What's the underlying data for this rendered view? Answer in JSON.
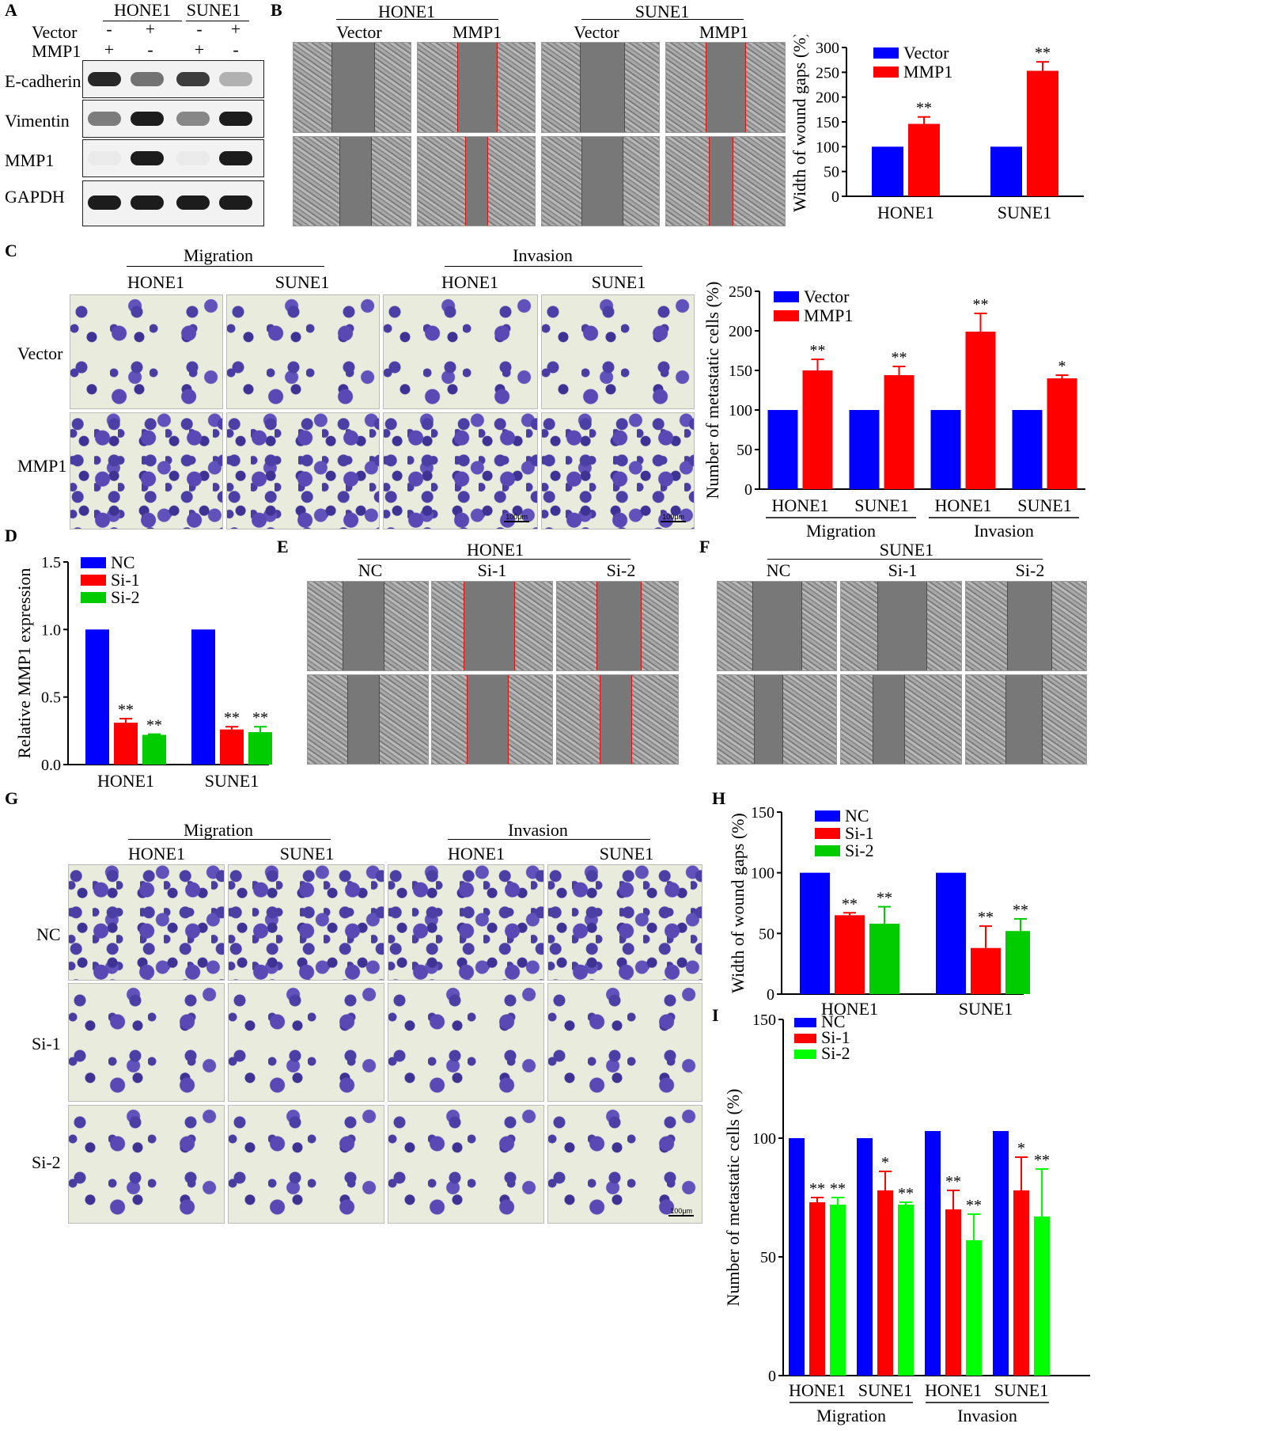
{
  "panels": {
    "A": "A",
    "B": "B",
    "C": "C",
    "D": "D",
    "E": "E",
    "F": "F",
    "G": "G",
    "H": "H",
    "I": "I"
  },
  "panel_a": {
    "groups": [
      "HONE1",
      "SUNE1"
    ],
    "row_labels": [
      "Vector",
      "MMP1"
    ],
    "vector_signs": [
      "-",
      "+",
      "-",
      "+"
    ],
    "mmp1_signs": [
      "+",
      "-",
      "+",
      "-"
    ],
    "blot_labels": [
      "E-cadherin",
      "Vimentin",
      "MMP1",
      "GAPDH"
    ],
    "band_intensity": {
      "E-cadherin": [
        0.95,
        0.6,
        0.85,
        0.3
      ],
      "Vimentin": [
        0.55,
        1.0,
        0.5,
        1.0
      ],
      "MMP1": [
        0.03,
        1.0,
        0.02,
        1.0
      ],
      "GAPDH": [
        1.0,
        1.0,
        1.0,
        1.0
      ]
    }
  },
  "panel_b": {
    "groups": [
      "HONE1",
      "SUNE1"
    ],
    "conditions": [
      "Vector",
      "MMP1",
      "Vector",
      "MMP1"
    ]
  },
  "panel_c": {
    "sections": [
      "Migration",
      "Invasion"
    ],
    "cells": [
      "HONE1",
      "SUNE1",
      "HONE1",
      "SUNE1"
    ],
    "row_labels": [
      "Vector",
      "MMP1"
    ],
    "scale_label": "100μm"
  },
  "panel_e": {
    "group": "HONE1",
    "conditions": [
      "NC",
      "Si-1",
      "Si-2"
    ]
  },
  "panel_f": {
    "group": "SUNE1",
    "conditions": [
      "NC",
      "Si-1",
      "Si-2"
    ]
  },
  "panel_g": {
    "sections": [
      "Migration",
      "Invasion"
    ],
    "cells": [
      "HONE1",
      "SUNE1",
      "HONE1",
      "SUNE1"
    ],
    "row_labels": [
      "NC",
      "Si-1",
      "Si-2"
    ],
    "scale_label": "100μm"
  },
  "chart_data": [
    {
      "id": "B",
      "type": "bar",
      "ylabel": "Width of wound gaps (%)",
      "categories": [
        "HONE1",
        "SUNE1"
      ],
      "ylim": [
        0,
        300
      ],
      "yticks": [
        0,
        50,
        100,
        150,
        200,
        250,
        300
      ],
      "series": [
        {
          "name": "Vector",
          "color": "#0000ff",
          "values": [
            100,
            100
          ],
          "errors": [
            0,
            0
          ],
          "sig": [
            "",
            ""
          ]
        },
        {
          "name": "MMP1",
          "color": "#ff0000",
          "values": [
            146,
            253
          ],
          "errors": [
            14,
            18
          ],
          "sig": [
            "**",
            "**"
          ]
        }
      ],
      "legend": "top-left"
    },
    {
      "id": "C",
      "type": "bar",
      "ylabel": "Number of metastatic cells (%)",
      "categories": [
        "HONE1",
        "SUNE1",
        "HONE1",
        "SUNE1"
      ],
      "groups": [
        "Migration",
        "Invasion"
      ],
      "ylim": [
        0,
        250
      ],
      "yticks": [
        0,
        50,
        100,
        150,
        200,
        250
      ],
      "series": [
        {
          "name": "Vector",
          "color": "#0000ff",
          "values": [
            100,
            100,
            100,
            100
          ],
          "errors": [
            0,
            0,
            0,
            0
          ],
          "sig": [
            "",
            "",
            "",
            ""
          ]
        },
        {
          "name": "MMP1",
          "color": "#ff0000",
          "values": [
            150,
            144,
            199,
            140
          ],
          "errors": [
            14,
            11,
            23,
            4
          ],
          "sig": [
            "**",
            "**",
            "**",
            "*"
          ]
        }
      ],
      "legend": "top-left"
    },
    {
      "id": "D",
      "type": "bar",
      "ylabel": "Relative MMP1 expression",
      "categories": [
        "HONE1",
        "SUNE1"
      ],
      "ylim": [
        0,
        1.5
      ],
      "yticks": [
        "0.0",
        "0.5",
        "1.0",
        "1.5"
      ],
      "series": [
        {
          "name": "NC",
          "color": "#0000ff",
          "values": [
            1.0,
            1.0
          ],
          "errors": [
            0,
            0
          ],
          "sig": [
            "",
            ""
          ]
        },
        {
          "name": "Si-1",
          "color": "#ff0000",
          "values": [
            0.31,
            0.26
          ],
          "errors": [
            0.03,
            0.02
          ],
          "sig": [
            "**",
            "**"
          ]
        },
        {
          "name": "Si-2",
          "color": "#00cc00",
          "values": [
            0.22,
            0.24
          ],
          "errors": [
            0.005,
            0.04
          ],
          "sig": [
            "**",
            "**"
          ]
        }
      ],
      "legend": "top-left"
    },
    {
      "id": "H",
      "type": "bar",
      "ylabel": "Width of wound gaps (%)",
      "categories": [
        "HONE1",
        "SUNE1"
      ],
      "ylim": [
        0,
        150
      ],
      "yticks": [
        0,
        50,
        100,
        150
      ],
      "series": [
        {
          "name": "NC",
          "color": "#0000ff",
          "values": [
            100,
            100
          ],
          "errors": [
            0,
            0
          ],
          "sig": [
            "",
            ""
          ]
        },
        {
          "name": "Si-1",
          "color": "#ff0000",
          "values": [
            65,
            38
          ],
          "errors": [
            2,
            18
          ],
          "sig": [
            "**",
            "**"
          ]
        },
        {
          "name": "Si-2",
          "color": "#00cc00",
          "values": [
            58,
            52
          ],
          "errors": [
            14,
            10
          ],
          "sig": [
            "**",
            "**"
          ]
        }
      ],
      "legend": "top-left"
    },
    {
      "id": "I",
      "type": "bar",
      "ylabel": "Number of metastatic cells (%)",
      "categories": [
        "HONE1",
        "SUNE1",
        "HONE1",
        "SUNE1"
      ],
      "groups": [
        "Migration",
        "Invasion"
      ],
      "ylim": [
        0,
        150
      ],
      "yticks": [
        0,
        50,
        100,
        150
      ],
      "series": [
        {
          "name": "NC",
          "color": "#0000ff",
          "values": [
            100,
            100,
            103,
            103
          ],
          "errors": [
            0,
            0,
            0,
            0
          ],
          "sig": [
            "",
            "",
            "",
            ""
          ]
        },
        {
          "name": "Si-1",
          "color": "#ff0000",
          "values": [
            73,
            78,
            70,
            78
          ],
          "errors": [
            2,
            8,
            8,
            14
          ],
          "sig": [
            "**",
            "*",
            "**",
            "*"
          ]
        },
        {
          "name": "Si-2",
          "color": "#00ff00",
          "values": [
            72,
            72,
            57,
            67
          ],
          "errors": [
            3,
            1,
            11,
            20
          ],
          "sig": [
            "**",
            "**",
            "**",
            "**"
          ]
        }
      ],
      "legend": "top-left"
    }
  ]
}
